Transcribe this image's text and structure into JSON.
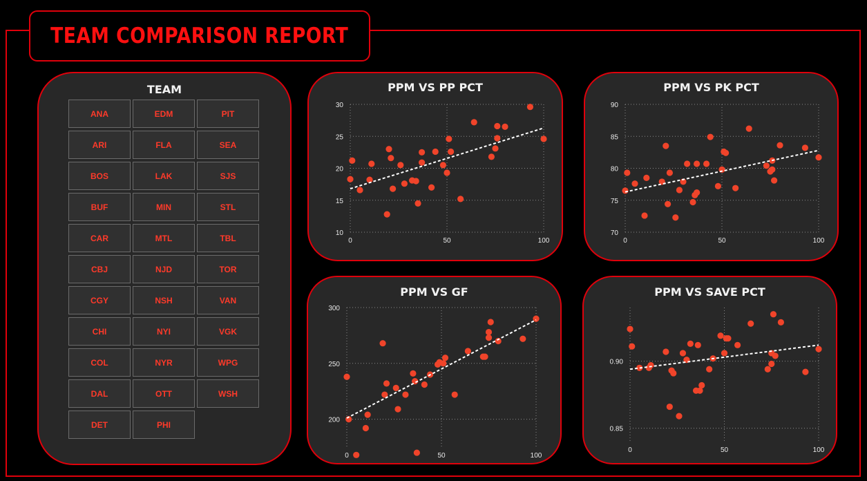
{
  "header": {
    "title": "TEAM COMPARISON REPORT"
  },
  "slicer": {
    "title": "TEAM",
    "teams": [
      "ANA",
      "EDM",
      "PIT",
      "ARI",
      "FLA",
      "SEA",
      "BOS",
      "LAK",
      "SJS",
      "BUF",
      "MIN",
      "STL",
      "CAR",
      "MTL",
      "TBL",
      "CBJ",
      "NJD",
      "TOR",
      "CGY",
      "NSH",
      "VAN",
      "CHI",
      "NYI",
      "VGK",
      "COL",
      "NYR",
      "WPG",
      "DAL",
      "OTT",
      "WSH",
      "DET",
      "PHI"
    ]
  },
  "colors": {
    "accent": "#e0000b",
    "point": "#f0442a",
    "panel": "#282828",
    "trend": "#ffffff"
  },
  "chart_data": [
    {
      "type": "scatter",
      "title": "PPM VS PP PCT",
      "xlim": [
        0,
        100
      ],
      "ylim": [
        10,
        30
      ],
      "xticks": [
        0,
        50,
        100
      ],
      "yticks": [
        10,
        15,
        20,
        25,
        30
      ],
      "x": [
        0,
        1,
        5,
        10,
        11,
        19,
        20,
        21,
        22,
        26,
        28,
        32,
        34,
        35,
        37,
        37,
        42,
        44,
        48,
        50,
        51,
        52,
        57,
        64,
        73,
        75,
        76,
        76,
        80,
        93,
        100
      ],
      "y": [
        18.3,
        21.2,
        16.6,
        18.2,
        20.7,
        12.8,
        23.0,
        21.6,
        16.8,
        20.5,
        17.6,
        18.1,
        18.0,
        14.5,
        20.9,
        22.5,
        17.0,
        22.6,
        20.5,
        19.3,
        24.6,
        22.6,
        15.2,
        27.2,
        21.8,
        23.1,
        24.7,
        26.6,
        26.5,
        29.6,
        24.6
      ],
      "trend": [
        [
          0,
          16.8
        ],
        [
          100,
          26.3
        ]
      ]
    },
    {
      "type": "scatter",
      "title": "PPM VS PK PCT",
      "xlim": [
        0,
        100
      ],
      "ylim": [
        70,
        90
      ],
      "xticks": [
        0,
        50,
        100
      ],
      "yticks": [
        70,
        75,
        80,
        85,
        90
      ],
      "x": [
        0,
        1,
        5,
        10,
        11,
        19,
        21,
        22,
        23,
        26,
        28,
        30,
        32,
        35,
        36,
        37,
        37,
        42,
        44,
        48,
        50,
        51,
        52,
        57,
        64,
        73,
        75,
        76,
        76,
        77,
        80,
        93,
        100
      ],
      "y": [
        76.5,
        79.3,
        77.6,
        72.6,
        78.5,
        77.9,
        83.5,
        74.4,
        79.3,
        72.3,
        76.6,
        77.9,
        80.7,
        74.7,
        75.8,
        80.7,
        76.2,
        80.7,
        84.9,
        77.2,
        79.8,
        82.6,
        82.4,
        76.9,
        86.2,
        80.4,
        79.5,
        81.2,
        79.8,
        78.1,
        83.6,
        83.2,
        81.7
      ],
      "trend": [
        [
          0,
          76.3
        ],
        [
          100,
          82.8
        ]
      ]
    },
    {
      "type": "scatter",
      "title": "PPM VS GF",
      "xlim": [
        0,
        100
      ],
      "ylim": [
        175,
        300
      ],
      "xticks": [
        0,
        50,
        100
      ],
      "yticks": [
        200,
        250,
        300
      ],
      "x": [
        0,
        1,
        5,
        10,
        11,
        19,
        20,
        21,
        26,
        27,
        31,
        35,
        36,
        37,
        41,
        44,
        48,
        49,
        51,
        52,
        57,
        64,
        72,
        73,
        75,
        75,
        76,
        80,
        93,
        100
      ],
      "y": [
        238,
        200,
        168,
        192,
        204,
        268,
        222,
        232,
        228,
        209,
        222,
        241,
        234,
        170,
        231,
        240,
        249,
        251,
        250,
        255,
        222,
        261,
        256,
        256,
        273,
        278,
        287,
        270,
        272,
        290
      ],
      "trend": [
        [
          0,
          201
        ],
        [
          100,
          289
        ]
      ]
    },
    {
      "type": "scatter",
      "title": "PPM VS SAVE PCT",
      "xlim": [
        0,
        100
      ],
      "ylim": [
        0.84,
        0.94
      ],
      "xticks": [
        0,
        50,
        100
      ],
      "yticks": [
        0.85,
        0.9
      ],
      "x": [
        0,
        1,
        5,
        10,
        11,
        19,
        21,
        22,
        23,
        26,
        28,
        30,
        32,
        35,
        36,
        37,
        38,
        42,
        44,
        48,
        50,
        51,
        52,
        57,
        64,
        73,
        75,
        75,
        76,
        77,
        80,
        93,
        100
      ],
      "y": [
        0.924,
        0.911,
        0.895,
        0.895,
        0.897,
        0.907,
        0.866,
        0.893,
        0.891,
        0.859,
        0.906,
        0.901,
        0.913,
        0.878,
        0.912,
        0.878,
        0.882,
        0.894,
        0.902,
        0.919,
        0.906,
        0.917,
        0.917,
        0.912,
        0.928,
        0.894,
        0.906,
        0.898,
        0.935,
        0.904,
        0.929,
        0.892,
        0.909
      ],
      "trend": [
        [
          0,
          0.894
        ],
        [
          100,
          0.912
        ]
      ]
    }
  ]
}
